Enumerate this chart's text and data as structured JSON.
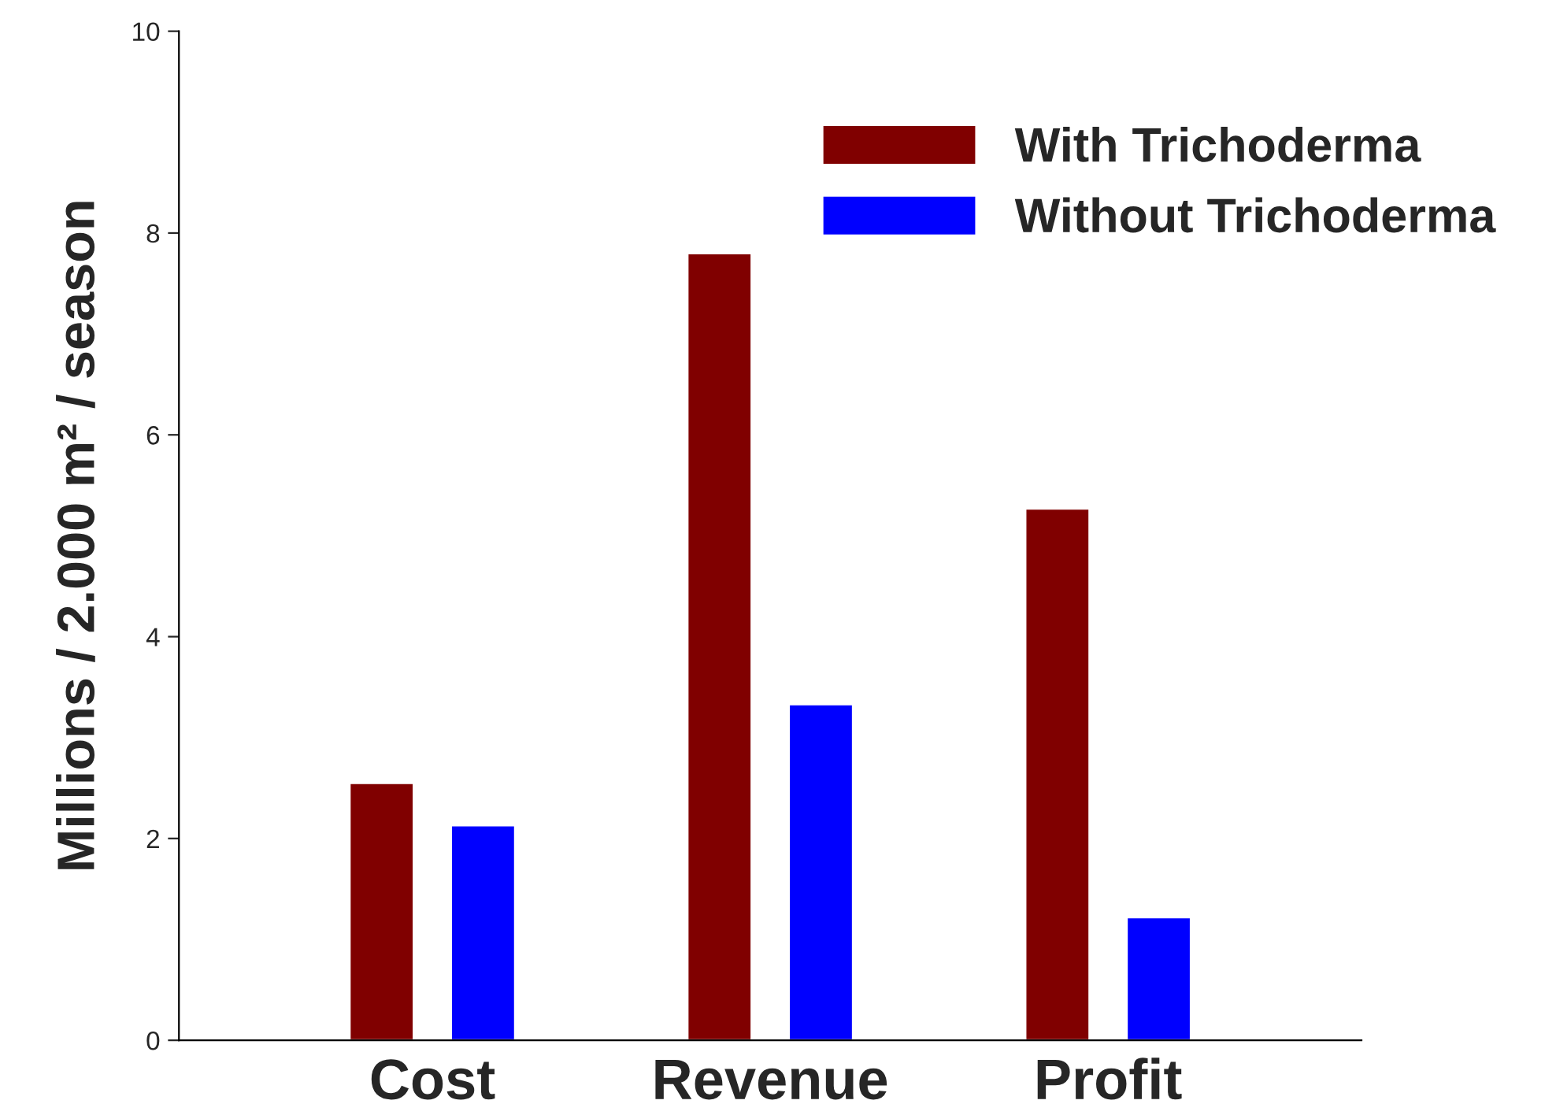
{
  "chart_data": {
    "type": "bar",
    "ylabel": "Millions / 2.000 m² / season",
    "categories": [
      "Cost",
      "Revenue",
      "Profit"
    ],
    "series": [
      {
        "name": "With Trichoderma",
        "color": "#800000",
        "values": [
          2.55,
          7.8,
          5.27
        ]
      },
      {
        "name": "Without Trichoderma",
        "color": "#0000ff",
        "values": [
          2.13,
          3.33,
          1.22
        ]
      }
    ],
    "ylim": [
      0,
      10
    ],
    "yticks": [
      0,
      2,
      4,
      6,
      8,
      10
    ],
    "legend": "top right",
    "grid": false
  }
}
